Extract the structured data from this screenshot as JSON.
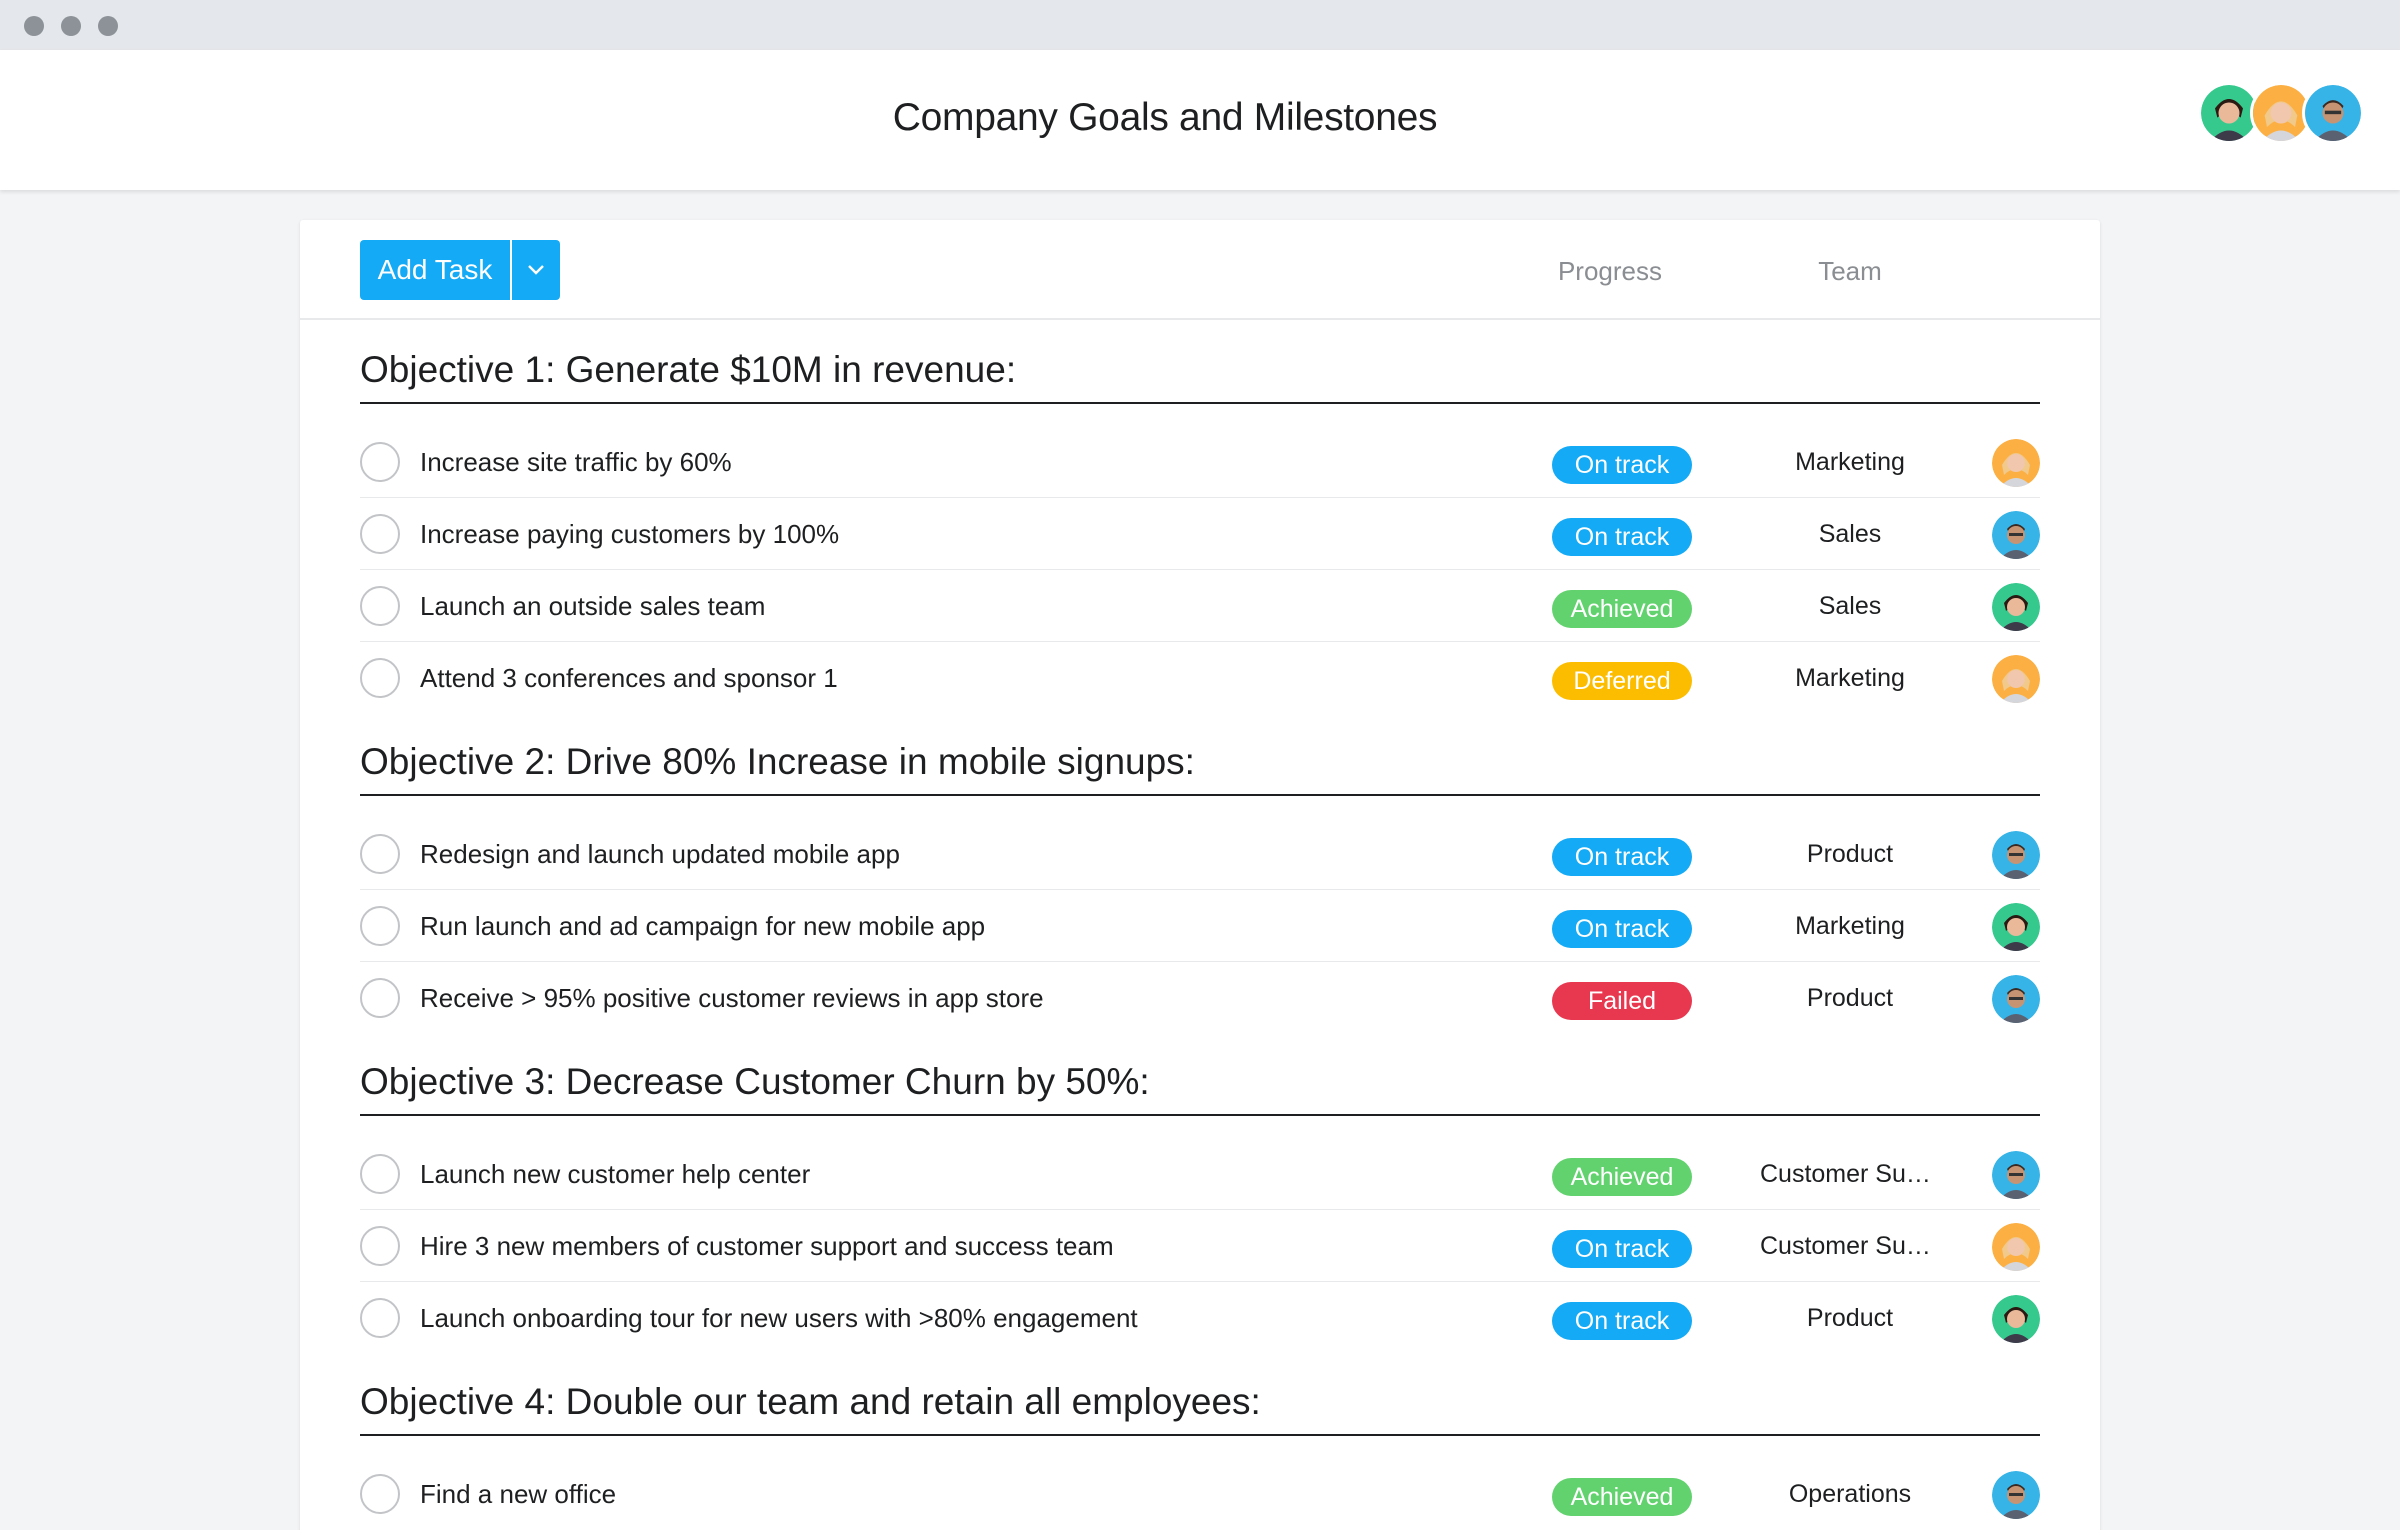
{
  "page": {
    "title": "Company Goals and Milestones"
  },
  "toolbar": {
    "add_task_label": "Add Task",
    "columns": {
      "progress": "Progress",
      "team": "Team"
    }
  },
  "colors": {
    "accent": "#14aaf5",
    "on_track": "#14aaf5",
    "achieved": "#62d26f",
    "deferred": "#fcbd01",
    "failed": "#e8384f"
  },
  "sections": [
    {
      "title": "Objective 1: Generate $10M in revenue:",
      "tasks": [
        {
          "name": "Increase site traffic by 60%",
          "status": "On track",
          "team": "Marketing",
          "assignee_icon": "avatar-orange"
        },
        {
          "name": "Increase paying customers by 100%",
          "status": "On track",
          "team": "Sales",
          "assignee_icon": "avatar-blue"
        },
        {
          "name": "Launch an outside sales team",
          "status": "Achieved",
          "team": "Sales",
          "assignee_icon": "avatar-green"
        },
        {
          "name": "Attend 3 conferences and sponsor 1",
          "status": "Deferred",
          "team": "Marketing",
          "assignee_icon": "avatar-orange"
        }
      ]
    },
    {
      "title": "Objective 2: Drive 80% Increase in mobile signups:",
      "tasks": [
        {
          "name": "Redesign and launch updated mobile app",
          "status": "On track",
          "team": "Product",
          "assignee_icon": "avatar-blue"
        },
        {
          "name": "Run launch and ad campaign for new mobile app",
          "status": "On track",
          "team": "Marketing",
          "assignee_icon": "avatar-green"
        },
        {
          "name": "Receive > 95% positive customer reviews in app store",
          "status": "Failed",
          "team": "Product",
          "assignee_icon": "avatar-blue"
        }
      ]
    },
    {
      "title": "Objective 3: Decrease Customer Churn by 50%:",
      "tasks": [
        {
          "name": "Launch new customer help center",
          "status": "Achieved",
          "team": "Customer Succ...",
          "assignee_icon": "avatar-blue"
        },
        {
          "name": "Hire 3 new members of customer support and success team",
          "status": "On track",
          "team": "Customer Succ...",
          "assignee_icon": "avatar-orange"
        },
        {
          "name": "Launch onboarding tour for new users with >80% engagement",
          "status": "On track",
          "team": "Product",
          "assignee_icon": "avatar-green"
        }
      ]
    },
    {
      "title": "Objective 4: Double our team and retain all employees:",
      "tasks": [
        {
          "name": "Find a new office",
          "status": "Achieved",
          "team": "Operations",
          "assignee_icon": "avatar-blue"
        }
      ]
    }
  ]
}
